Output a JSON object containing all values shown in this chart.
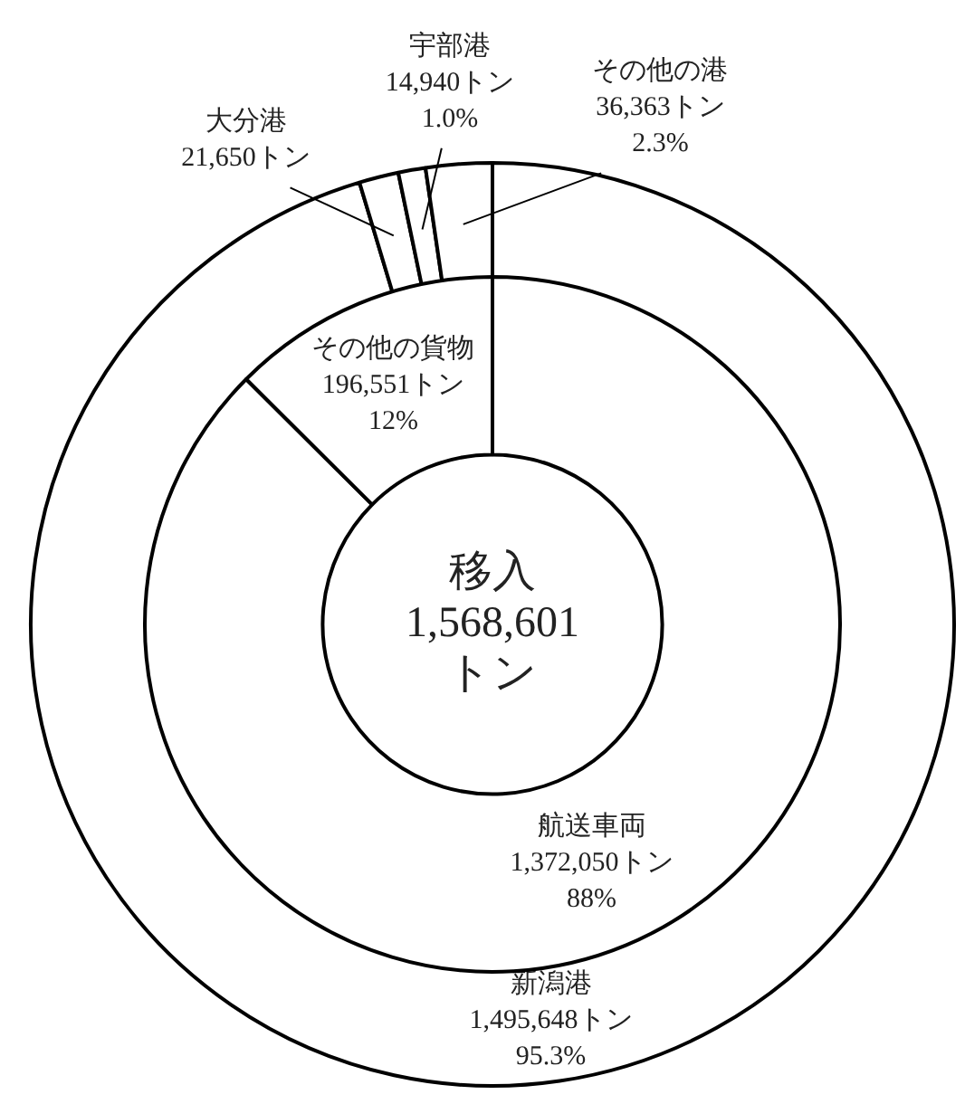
{
  "chart_data": [
    {
      "type": "donut",
      "categories": [
        "新潟港",
        "大分港",
        "宇部港",
        "その他の港"
      ],
      "values": [
        1495648,
        21650,
        14940,
        36363
      ],
      "value_labels": [
        "1,495,648トン\n95.3%",
        "21,650トン",
        "14,940トン\n1.0%",
        "36,363トン\n2.3%"
      ],
      "colors": [
        "#ffffff",
        "#ffffff",
        "#ffffff",
        "#ffffff"
      ]
    },
    {
      "type": "donut",
      "title": "移入\n1,568,601\nトン",
      "categories": [
        "航送車両",
        "その他の貨物"
      ],
      "values": [
        1372050,
        196551
      ],
      "value_labels": [
        "1,372,050トン\n88%",
        "196,551トン\n12%"
      ],
      "colors": [
        "#ffffff",
        "#ffffff"
      ]
    }
  ]
}
